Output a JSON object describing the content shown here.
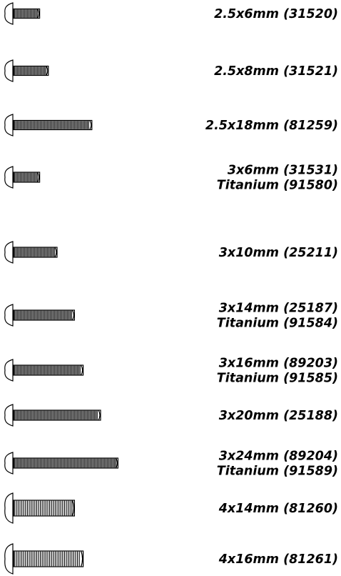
{
  "screws": [
    {
      "lines": [
        "2.5x6mm (31520)"
      ],
      "length_mm": 6,
      "diameter_mm": 2.5
    },
    {
      "lines": [
        "2.5x8mm (31521)"
      ],
      "length_mm": 8,
      "diameter_mm": 2.5
    },
    {
      "lines": [
        "2.5x18mm (81259)"
      ],
      "length_mm": 18,
      "diameter_mm": 2.5
    },
    {
      "lines": [
        "3x6mm (31531)",
        "Titanium (91580)"
      ],
      "length_mm": 6,
      "diameter_mm": 3
    },
    {
      "lines": [
        "3x10mm (25211)"
      ],
      "length_mm": 10,
      "diameter_mm": 3
    },
    {
      "lines": [
        "3x14mm (25187)",
        "Titanium (91584)"
      ],
      "length_mm": 14,
      "diameter_mm": 3
    },
    {
      "lines": [
        "3x16mm (89203)",
        "Titanium (91585)"
      ],
      "length_mm": 16,
      "diameter_mm": 3
    },
    {
      "lines": [
        "3x20mm (25188)"
      ],
      "length_mm": 20,
      "diameter_mm": 3
    },
    {
      "lines": [
        "3x24mm (89204)",
        "Titanium (91589)"
      ],
      "length_mm": 24,
      "diameter_mm": 3
    },
    {
      "lines": [
        "4x14mm (81260)"
      ],
      "length_mm": 14,
      "diameter_mm": 4
    },
    {
      "lines": [
        "4x16mm (81261)"
      ],
      "length_mm": 16,
      "diameter_mm": 4
    }
  ]
}
